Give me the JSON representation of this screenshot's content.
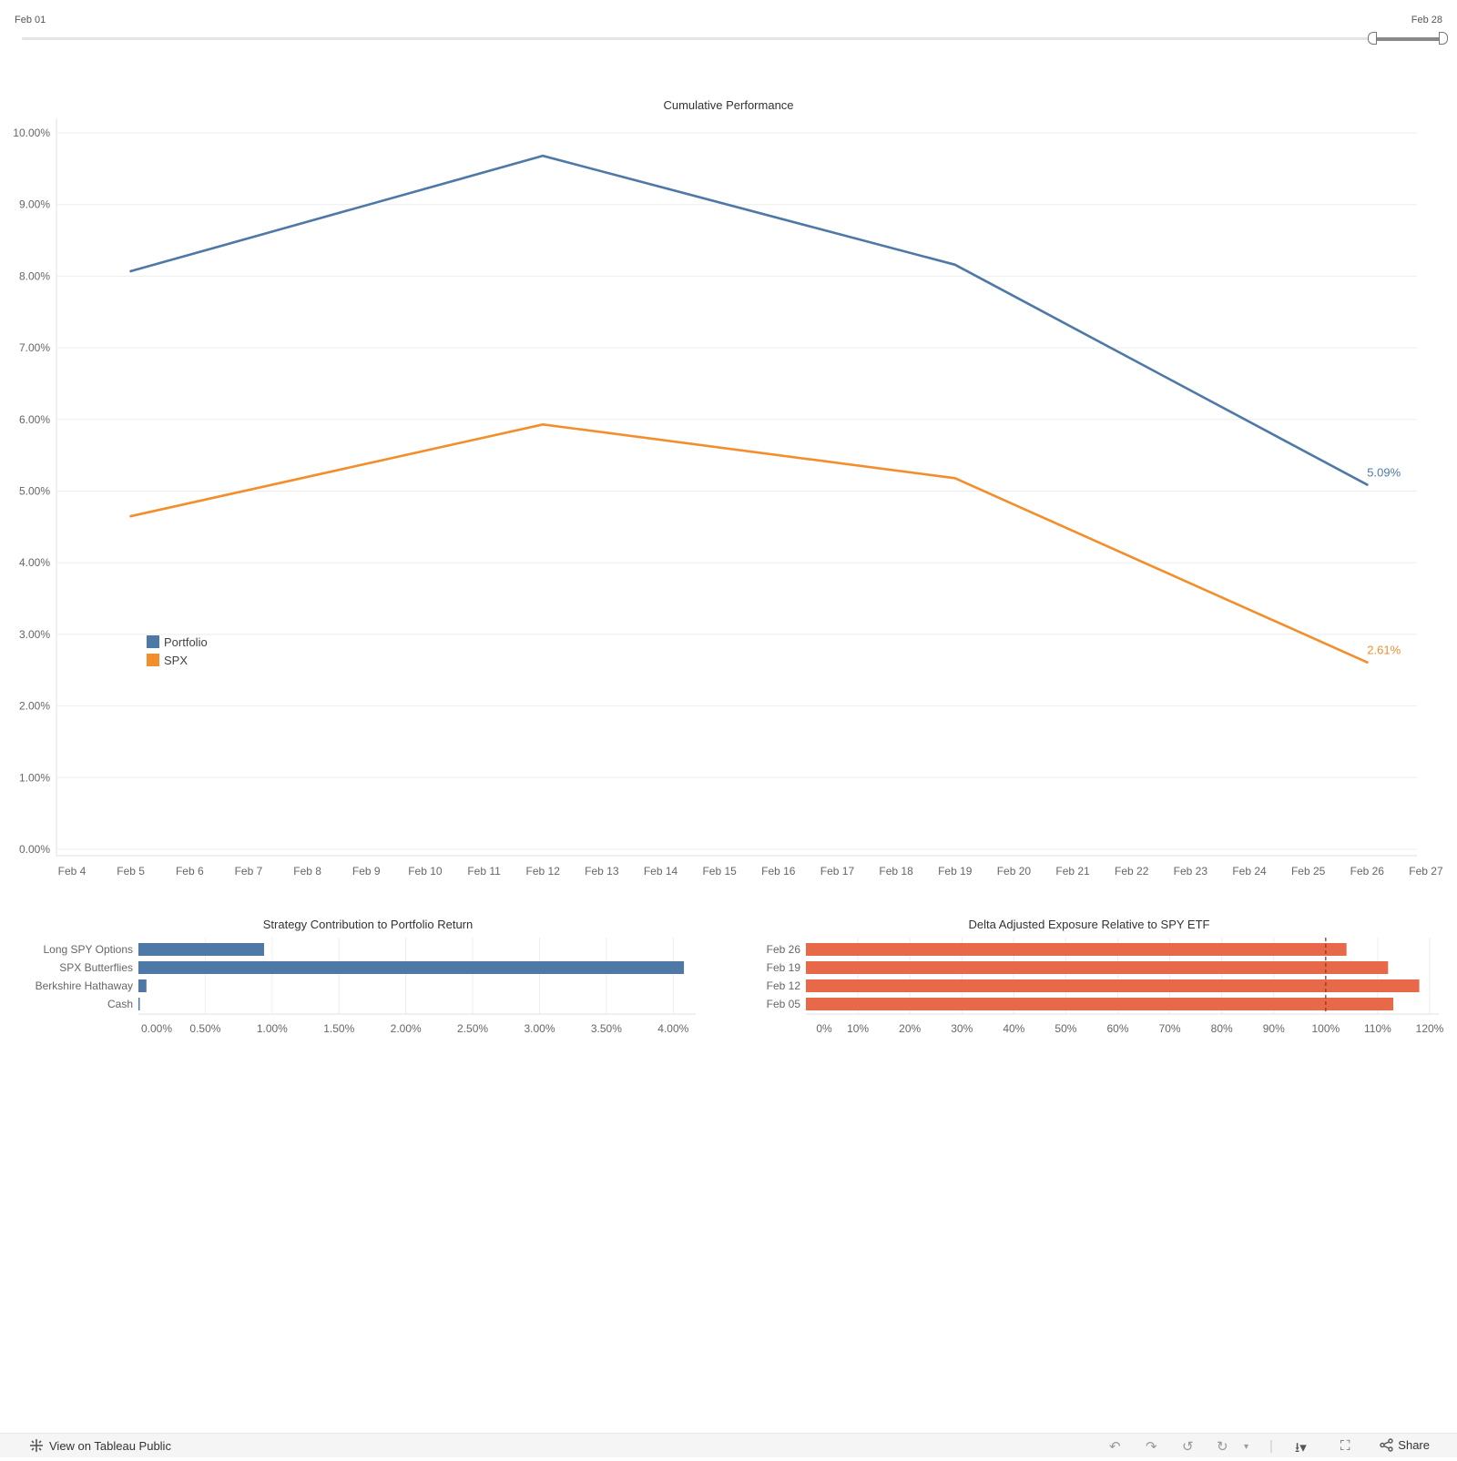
{
  "filter": {
    "start_label": "Feb 01",
    "end_label": "Feb 28",
    "range_start_fraction": 0.95,
    "range_end_fraction": 1.0
  },
  "chart_data": [
    {
      "type": "line",
      "title": "Cumulative Performance",
      "xlabel": "",
      "ylabel": "",
      "x_ticks": [
        "Feb 4",
        "Feb 5",
        "Feb 6",
        "Feb 7",
        "Feb 8",
        "Feb 9",
        "Feb 10",
        "Feb 11",
        "Feb 12",
        "Feb 13",
        "Feb 14",
        "Feb 15",
        "Feb 16",
        "Feb 17",
        "Feb 18",
        "Feb 19",
        "Feb 20",
        "Feb 21",
        "Feb 22",
        "Feb 23",
        "Feb 24",
        "Feb 25",
        "Feb 26",
        "Feb 27"
      ],
      "x_range_day": [
        4,
        27
      ],
      "y_ticks": [
        "0.00%",
        "1.00%",
        "2.00%",
        "3.00%",
        "4.00%",
        "5.00%",
        "6.00%",
        "7.00%",
        "8.00%",
        "9.00%",
        "10.00%"
      ],
      "ylim": [
        0,
        10
      ],
      "series": [
        {
          "name": "Portfolio",
          "color": "#4e79a7",
          "points": [
            {
              "day": 5,
              "value": 8.07
            },
            {
              "day": 12,
              "value": 9.68
            },
            {
              "day": 19,
              "value": 8.16
            },
            {
              "day": 26,
              "value": 5.09
            }
          ],
          "end_label": "5.09%"
        },
        {
          "name": "SPX",
          "color": "#f28e2b",
          "points": [
            {
              "day": 5,
              "value": 4.65
            },
            {
              "day": 12,
              "value": 5.93
            },
            {
              "day": 19,
              "value": 5.18
            },
            {
              "day": 26,
              "value": 2.61
            }
          ],
          "end_label": "2.61%"
        }
      ],
      "legend": "bottom-left",
      "grid": true
    },
    {
      "type": "bar",
      "orientation": "horizontal",
      "title": "Strategy Contribution to Portfolio Return",
      "categories": [
        "Long SPY Options",
        "SPX Butterflies",
        "Berkshire Hathaway",
        "Cash"
      ],
      "values": [
        0.94,
        4.08,
        0.06,
        0.005
      ],
      "x_ticks": [
        "0.00%",
        "0.50%",
        "1.00%",
        "1.50%",
        "2.00%",
        "2.50%",
        "3.00%",
        "3.50%",
        "4.00%"
      ],
      "xlim": [
        0,
        4.1
      ],
      "color": "#4e79a7",
      "grid": true
    },
    {
      "type": "bar",
      "orientation": "horizontal",
      "title": "Delta Adjusted Exposure Relative to SPY ETF",
      "categories": [
        "Feb 26",
        "Feb 19",
        "Feb 12",
        "Feb 05"
      ],
      "values": [
        104,
        112,
        118,
        113
      ],
      "x_ticks": [
        "0%",
        "10%",
        "20%",
        "30%",
        "40%",
        "50%",
        "60%",
        "70%",
        "80%",
        "90%",
        "100%",
        "110%",
        "120%"
      ],
      "xlim": [
        0,
        120
      ],
      "reference_line": 100,
      "color": "#e8684a",
      "grid": true
    }
  ],
  "footer": {
    "view_on_label": "View on Tableau Public",
    "share_label": "Share"
  }
}
